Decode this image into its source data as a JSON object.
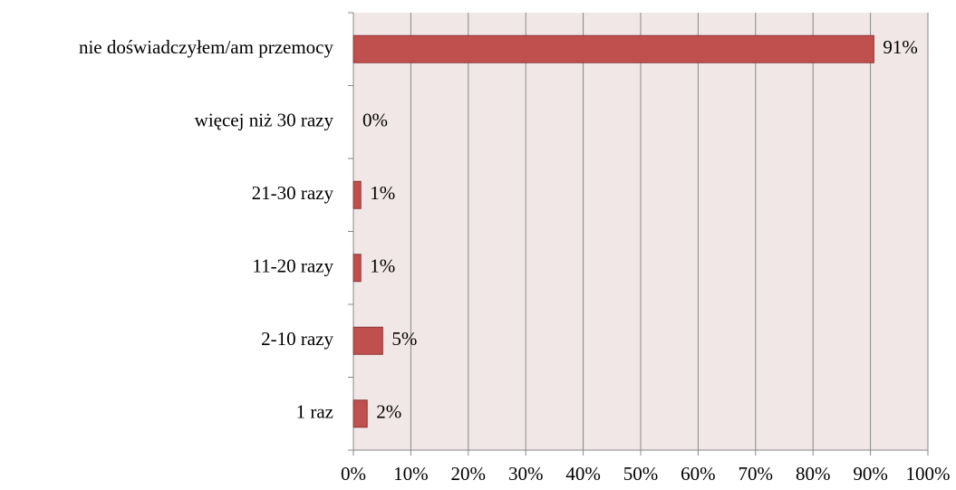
{
  "chart_data": {
    "type": "barh",
    "categories": [
      "nie doświadczyłem/am przemocy",
      "więcej niż 30 razy",
      "21-30 razy",
      "11-20 razy",
      "2-10 razy",
      "1 raz"
    ],
    "values": [
      90.6,
      0,
      1.3,
      1.3,
      5.1,
      2.4
    ],
    "value_labels": [
      "91%",
      "0%",
      "1%",
      "1%",
      "5%",
      "2%"
    ],
    "color": "#c0504d",
    "xlim": [
      0,
      100
    ],
    "xticks": [
      {
        "value": 0,
        "label": "0%"
      },
      {
        "value": 10,
        "label": "10%"
      },
      {
        "value": 20,
        "label": "20%"
      },
      {
        "value": 30,
        "label": "30%"
      },
      {
        "value": 40,
        "label": "40%"
      },
      {
        "value": 50,
        "label": "50%"
      },
      {
        "value": 60,
        "label": "60%"
      },
      {
        "value": 70,
        "label": "70%"
      },
      {
        "value": 80,
        "label": "80%"
      },
      {
        "value": 90,
        "label": "90%"
      },
      {
        "value": 100,
        "label": "100%"
      }
    ],
    "grid": true
  }
}
